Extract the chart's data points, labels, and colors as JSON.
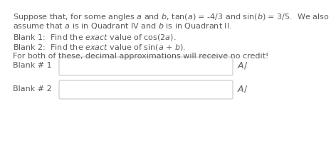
{
  "bg_color": "#ffffff",
  "text_color": "#5a5a5a",
  "font_size": 8.0,
  "line1": "Suppose that, for some angles $a$ and $b$, tan($a$) = -4/3 and sin($b$) = 3/5.  We also",
  "line2": "assume that $a$ is in Quadrant IV and $b$ is in Quadrant II.",
  "blank1_text": "Blank 1:  Find the $exact$ value of cos(2$a$).",
  "blank2_text": "Blank 2:  Find the $exact$ value of sin($a$ + $b$).",
  "note_text": "For both of these, decimal approximations will receive no credit!",
  "label1": "Blank # 1",
  "label2": "Blank # 2",
  "box_edge_color": "#c8c8c8",
  "check_color": "#606060"
}
